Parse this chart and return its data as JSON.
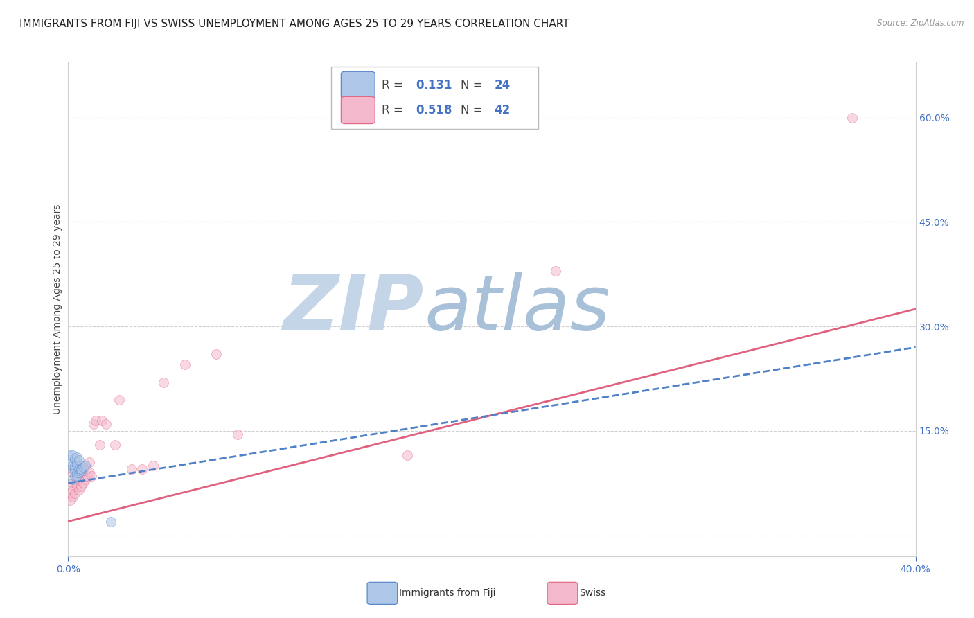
{
  "title": "IMMIGRANTS FROM FIJI VS SWISS UNEMPLOYMENT AMONG AGES 25 TO 29 YEARS CORRELATION CHART",
  "source": "Source: ZipAtlas.com",
  "ylabel": "Unemployment Among Ages 25 to 29 years",
  "xlim": [
    0.0,
    0.4
  ],
  "ylim": [
    -0.03,
    0.68
  ],
  "xticks": [
    0.0,
    0.4
  ],
  "xticklabels": [
    "0.0%",
    "40.0%"
  ],
  "right_yticks": [
    0.0,
    0.15,
    0.3,
    0.45,
    0.6
  ],
  "right_yticklabels": [
    "",
    "15.0%",
    "30.0%",
    "45.0%",
    "60.0%"
  ],
  "fiji_R": 0.131,
  "fiji_N": 24,
  "swiss_R": 0.518,
  "swiss_N": 42,
  "fiji_color": "#aec6e8",
  "swiss_color": "#f4b8cc",
  "fiji_line_color": "#5080c8",
  "swiss_line_color": "#e06080",
  "label_color": "#4472c4",
  "watermark": "ZIPatlas",
  "watermark_color_zip": "#c5d5e8",
  "watermark_color_atlas": "#a8c0d8",
  "fiji_x": [
    0.001,
    0.001,
    0.002,
    0.002,
    0.002,
    0.002,
    0.003,
    0.003,
    0.003,
    0.003,
    0.003,
    0.004,
    0.004,
    0.004,
    0.004,
    0.004,
    0.005,
    0.005,
    0.005,
    0.006,
    0.006,
    0.007,
    0.008,
    0.02
  ],
  "fiji_y": [
    0.105,
    0.115,
    0.08,
    0.095,
    0.1,
    0.115,
    0.085,
    0.092,
    0.095,
    0.1,
    0.11,
    0.085,
    0.09,
    0.1,
    0.105,
    0.112,
    0.09,
    0.095,
    0.108,
    0.092,
    0.095,
    0.098,
    0.1,
    0.02
  ],
  "swiss_x": [
    0.001,
    0.001,
    0.002,
    0.002,
    0.002,
    0.002,
    0.003,
    0.003,
    0.003,
    0.004,
    0.004,
    0.004,
    0.005,
    0.005,
    0.005,
    0.006,
    0.006,
    0.007,
    0.007,
    0.008,
    0.008,
    0.009,
    0.01,
    0.01,
    0.011,
    0.012,
    0.013,
    0.015,
    0.016,
    0.018,
    0.022,
    0.024,
    0.03,
    0.035,
    0.04,
    0.045,
    0.055,
    0.07,
    0.08,
    0.16,
    0.23,
    0.37
  ],
  "swiss_y": [
    0.05,
    0.06,
    0.055,
    0.065,
    0.075,
    0.09,
    0.06,
    0.075,
    0.085,
    0.07,
    0.08,
    0.095,
    0.065,
    0.085,
    0.1,
    0.07,
    0.09,
    0.075,
    0.095,
    0.08,
    0.1,
    0.085,
    0.09,
    0.105,
    0.085,
    0.16,
    0.165,
    0.13,
    0.165,
    0.16,
    0.13,
    0.195,
    0.095,
    0.095,
    0.1,
    0.22,
    0.245,
    0.26,
    0.145,
    0.115,
    0.38,
    0.6
  ],
  "fiji_trend_x0": 0.0,
  "fiji_trend_y0": 0.075,
  "fiji_trend_x1": 0.4,
  "fiji_trend_y1": 0.27,
  "swiss_trend_x0": 0.0,
  "swiss_trend_y0": 0.02,
  "swiss_trend_x1": 0.4,
  "swiss_trend_y1": 0.325,
  "dot_size": 100,
  "dot_alpha": 0.55,
  "title_fontsize": 11,
  "axis_label_fontsize": 10,
  "tick_fontsize": 10,
  "legend_fontsize": 12,
  "background_color": "#ffffff",
  "grid_color": "#d0d0d0",
  "spine_color": "#d0d0d0"
}
